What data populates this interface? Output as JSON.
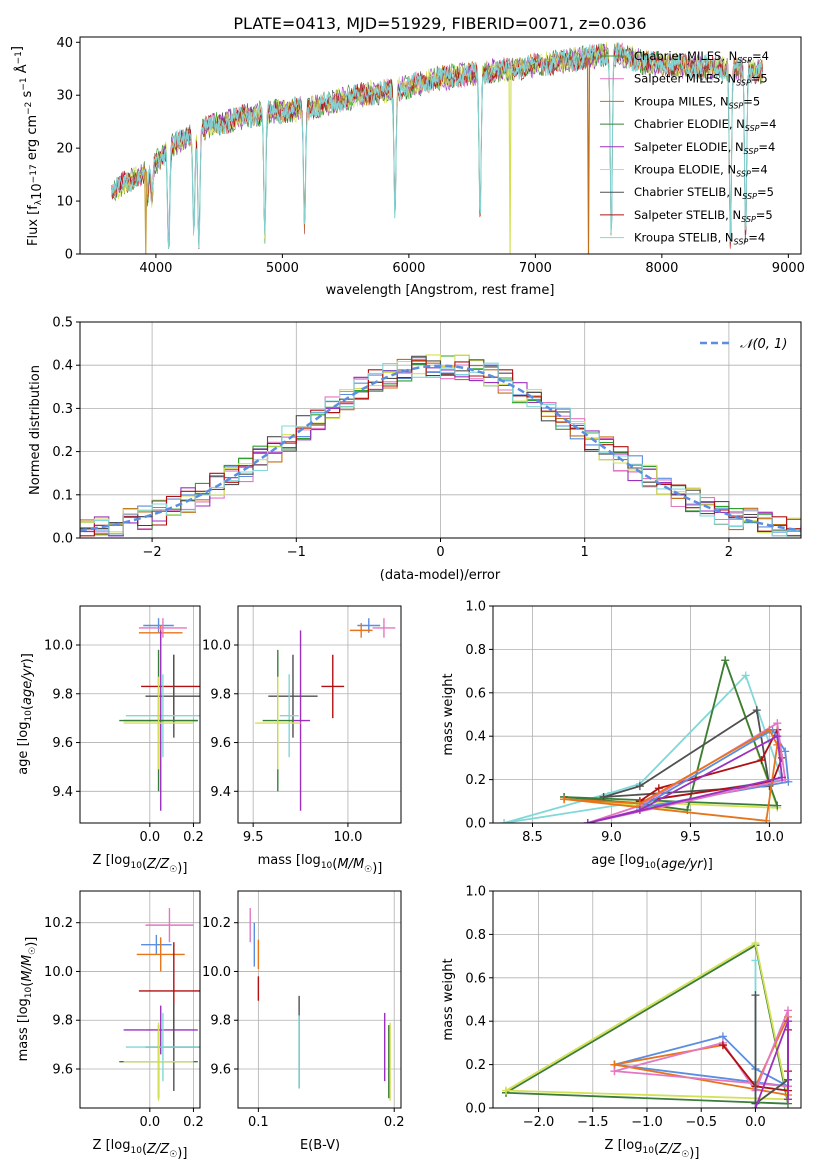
{
  "figure": {
    "title": "PLATE=0413, MJD=51929, FIBERID=0071, z=0.036"
  },
  "colors": {
    "chabrier_miles": "#2ca02c",
    "salpeter_miles": "#e377c2",
    "kroupa_miles": "#c07018",
    "chabrier_elodie": "#3a7d3a",
    "salpeter_elodie": "#9b30c0",
    "kroupa_elodie": "#d4e157",
    "chabrier_stelib": "#505050",
    "salpeter_stelib": "#b01010",
    "kroupa_stelib": "#80d8d8",
    "miles_blue": "#5b8ee0",
    "miles_orange": "#e8741a",
    "normal_curve": "#5b8ee0"
  },
  "chart_data": [
    {
      "id": "spectrum",
      "type": "line",
      "xlabel": "wavelength [Angstrom, rest frame]",
      "ylabel": "Flux [f_λ10^-17 erg cm^-2 s^-1 A^-1]",
      "xlim": [
        3400,
        9100
      ],
      "ylim": [
        0,
        41
      ],
      "xticks": [
        4000,
        5000,
        6000,
        7000,
        8000,
        9000
      ],
      "yticks": [
        0,
        10,
        20,
        30,
        40
      ],
      "legend_position": "right",
      "grid": false,
      "legend": [
        {
          "label": "Chabrier MILES, N_SSP=4",
          "color": "#2ca02c"
        },
        {
          "label": "Salpeter MILES, N_SSP=5",
          "color": "#e377c2"
        },
        {
          "label": "Kroupa MILES, N_SSP=5",
          "color": "#c07018"
        },
        {
          "label": "Chabrier ELODIE, N_SSP=4",
          "color": "#3a7d3a"
        },
        {
          "label": "Salpeter ELODIE, N_SSP=4",
          "color": "#9b30c0"
        },
        {
          "label": "Kroupa ELODIE, N_SSP=4",
          "color": "#d4e157"
        },
        {
          "label": "Chabrier STELIB, N_SSP=5",
          "color": "#505050"
        },
        {
          "label": "Salpeter STELIB, N_SSP=5",
          "color": "#b01010"
        },
        {
          "label": "Kroupa STELIB, N_SSP=4",
          "color": "#80d8d8"
        }
      ],
      "continuum": [
        [
          3650,
          12
        ],
        [
          3800,
          14
        ],
        [
          3950,
          16
        ],
        [
          4100,
          20
        ],
        [
          4400,
          24
        ],
        [
          4700,
          26
        ],
        [
          5000,
          27
        ],
        [
          5300,
          28
        ],
        [
          5600,
          30
        ],
        [
          5900,
          31
        ],
        [
          6200,
          33
        ],
        [
          6500,
          34
        ],
        [
          6800,
          35
        ],
        [
          7100,
          36
        ],
        [
          7400,
          37
        ],
        [
          7600,
          38
        ],
        [
          7900,
          36
        ],
        [
          8200,
          35.5
        ],
        [
          8500,
          35
        ],
        [
          8800,
          34.5
        ]
      ],
      "absorption_lines": [
        [
          3934,
          5
        ],
        [
          3969,
          6
        ],
        [
          4101,
          20
        ],
        [
          4300,
          18
        ],
        [
          4340,
          21
        ],
        [
          4861,
          23
        ],
        [
          5175,
          22
        ],
        [
          5890,
          23
        ],
        [
          6563,
          28
        ],
        [
          7600,
          34
        ],
        [
          8542,
          33
        ],
        [
          8662,
          32
        ]
      ],
      "dropouts": [
        [
          3920,
          "#c8a040"
        ],
        [
          6800,
          "#d4e157"
        ],
        [
          7420,
          "#c07018"
        ]
      ]
    },
    {
      "id": "residual-histogram",
      "type": "bar",
      "xlabel": "(data-model)/error",
      "ylabel": "Normed distribution",
      "xlim": [
        -2.5,
        2.5
      ],
      "ylim": [
        0,
        0.5
      ],
      "xticks": [
        -2,
        -1,
        0,
        1,
        2
      ],
      "yticks": [
        0.0,
        0.1,
        0.2,
        0.3,
        0.4,
        0.5
      ],
      "grid": true,
      "legend": [
        {
          "label": "𝒩(0, 1)",
          "style": "dashed",
          "color": "#5b8ee0"
        }
      ],
      "legend_position": "top-right",
      "bin_width": 0.1
    },
    {
      "id": "age-vs-Z",
      "type": "scatter",
      "xlabel": "Z [log10(Z/Z☉)]",
      "ylabel": "age [log10(age/yr)]",
      "xlim": [
        -0.32,
        0.23
      ],
      "ylim": [
        9.27,
        10.16
      ],
      "xticks": [
        0.0,
        0.2
      ],
      "yticks": [
        9.4,
        9.6,
        9.8,
        10.0
      ],
      "grid": true,
      "points": [
        {
          "color": "#5b8ee0",
          "x": 0.04,
          "xerr": 0.07,
          "y": 10.08,
          "yerr": 0.03
        },
        {
          "color": "#e8741a",
          "x": 0.05,
          "xerr": 0.1,
          "y": 10.05,
          "yerr": 0.03
        },
        {
          "color": "#e377c2",
          "x": 0.06,
          "xerr": 0.11,
          "y": 10.07,
          "yerr": 0.04
        },
        {
          "color": "#b01010",
          "x": 0.11,
          "xerr": 0.15,
          "y": 9.83,
          "yerr": 0.13
        },
        {
          "color": "#505050",
          "x": 0.11,
          "xerr": 0.13,
          "y": 9.79,
          "yerr": 0.17
        },
        {
          "color": "#80d8d8",
          "x": 0.06,
          "xerr": 0.17,
          "y": 9.71,
          "yerr": 0.17
        },
        {
          "color": "#9b30c0",
          "x": 0.05,
          "xerr": 0.17,
          "y": 9.69,
          "yerr": 0.37
        },
        {
          "color": "#3a7d3a",
          "x": 0.04,
          "xerr": 0.18,
          "y": 9.69,
          "yerr": 0.29
        },
        {
          "color": "#d4e157",
          "x": 0.04,
          "xerr": 0.16,
          "y": 9.68,
          "yerr": 0.19
        }
      ]
    },
    {
      "id": "age-vs-mass",
      "type": "scatter",
      "xlabel": "mass [log10(M/M☉)]",
      "ylabel": "",
      "xlim": [
        9.42,
        10.28
      ],
      "ylim": [
        9.27,
        10.16
      ],
      "xticks": [
        9.5,
        10.0
      ],
      "yticks": [
        9.4,
        9.6,
        9.8,
        10.0
      ],
      "grid": true,
      "points": [
        {
          "color": "#5b8ee0",
          "x": 10.11,
          "xerr": 0.06,
          "y": 10.08,
          "yerr": 0.03
        },
        {
          "color": "#e8741a",
          "x": 10.07,
          "xerr": 0.06,
          "y": 10.06,
          "yerr": 0.03
        },
        {
          "color": "#e377c2",
          "x": 10.19,
          "xerr": 0.06,
          "y": 10.07,
          "yerr": 0.04
        },
        {
          "color": "#b01010",
          "x": 9.92,
          "xerr": 0.06,
          "y": 9.83,
          "yerr": 0.13
        },
        {
          "color": "#505050",
          "x": 9.71,
          "xerr": 0.13,
          "y": 9.79,
          "yerr": 0.17
        },
        {
          "color": "#80d8d8",
          "x": 9.69,
          "xerr": 0.05,
          "y": 9.71,
          "yerr": 0.17
        },
        {
          "color": "#9b30c0",
          "x": 9.75,
          "xerr": 0.05,
          "y": 9.69,
          "yerr": 0.37
        },
        {
          "color": "#3a7d3a",
          "x": 9.63,
          "xerr": 0.08,
          "y": 9.69,
          "yerr": 0.29
        },
        {
          "color": "#d4e157",
          "x": 9.63,
          "xerr": 0.12,
          "y": 9.68,
          "yerr": 0.19
        }
      ]
    },
    {
      "id": "mass-weight-vs-age",
      "type": "line",
      "xlabel": "age [log10(age/yr)]",
      "ylabel": "mass weight",
      "xlim": [
        8.25,
        10.2
      ],
      "ylim": [
        0,
        1
      ],
      "xticks": [
        8.5,
        9.0,
        9.5,
        10.0
      ],
      "yticks": [
        0.0,
        0.2,
        0.4,
        0.6,
        0.8,
        1.0
      ],
      "grid": true,
      "series": [
        {
          "color": "#80d8d8",
          "points": [
            [
              8.32,
              0.0
            ],
            [
              9.0,
              0.14
            ],
            [
              9.18,
              0.18
            ],
            [
              9.85,
              0.68
            ],
            [
              10.08,
              0.2
            ],
            [
              8.32,
              0.0
            ]
          ]
        },
        {
          "color": "#d4e157",
          "points": [
            [
              8.7,
              0.11
            ],
            [
              9.18,
              0.08
            ],
            [
              9.48,
              0.06
            ],
            [
              9.72,
              0.75
            ],
            [
              10.05,
              0.07
            ],
            [
              8.7,
              0.11
            ]
          ]
        },
        {
          "color": "#3a7d3a",
          "points": [
            [
              8.7,
              0.12
            ],
            [
              9.18,
              0.09
            ],
            [
              9.48,
              0.06
            ],
            [
              9.72,
              0.75
            ],
            [
              10.05,
              0.08
            ],
            [
              8.7,
              0.12
            ]
          ]
        },
        {
          "color": "#505050",
          "points": [
            [
              8.95,
              0.12
            ],
            [
              9.18,
              0.17
            ],
            [
              9.92,
              0.52
            ],
            [
              10.0,
              0.17
            ],
            [
              8.95,
              0.12
            ]
          ]
        },
        {
          "color": "#b01010",
          "points": [
            [
              9.18,
              0.1
            ],
            [
              9.3,
              0.16
            ],
            [
              9.95,
              0.29
            ],
            [
              10.05,
              0.43
            ],
            [
              10.08,
              0.3
            ],
            [
              10.02,
              0.19
            ],
            [
              9.18,
              0.1
            ]
          ]
        },
        {
          "color": "#5b8ee0",
          "points": [
            [
              9.18,
              0.07
            ],
            [
              10.02,
              0.43
            ],
            [
              10.1,
              0.33
            ],
            [
              10.12,
              0.19
            ],
            [
              9.18,
              0.07
            ]
          ]
        },
        {
          "color": "#e377c2",
          "points": [
            [
              8.85,
              0.0
            ],
            [
              9.18,
              0.08
            ],
            [
              10.05,
              0.46
            ],
            [
              10.1,
              0.2
            ],
            [
              8.85,
              0.0
            ]
          ]
        },
        {
          "color": "#e8741a",
          "points": [
            [
              8.7,
              0.11
            ],
            [
              9.18,
              0.09
            ],
            [
              10.0,
              0.43
            ],
            [
              10.05,
              0.36
            ],
            [
              9.98,
              0.01
            ],
            [
              8.7,
              0.11
            ]
          ]
        },
        {
          "color": "#9b30c0",
          "points": [
            [
              8.85,
              0.0
            ],
            [
              9.18,
              0.06
            ],
            [
              10.05,
              0.4
            ],
            [
              10.08,
              0.21
            ],
            [
              8.85,
              0.0
            ]
          ]
        }
      ]
    },
    {
      "id": "mass-vs-Z",
      "type": "scatter",
      "xlabel": "Z [log10(Z/Z☉)]",
      "ylabel": "mass [log10(M/M☉)]",
      "xlim": [
        -0.32,
        0.23
      ],
      "ylim": [
        9.44,
        10.33
      ],
      "xticks": [
        0.0,
        0.2
      ],
      "yticks": [
        9.6,
        9.8,
        10.0,
        10.2
      ],
      "grid": true,
      "points": [
        {
          "color": "#e377c2",
          "x": 0.09,
          "xerr": 0.11,
          "y": 10.19,
          "yerr": 0.07
        },
        {
          "color": "#5b8ee0",
          "x": 0.03,
          "xerr": 0.07,
          "y": 10.11,
          "yerr": 0.04
        },
        {
          "color": "#e8741a",
          "x": 0.05,
          "xerr": 0.11,
          "y": 10.07,
          "yerr": 0.07
        },
        {
          "color": "#b01010",
          "x": 0.11,
          "xerr": 0.16,
          "y": 9.92,
          "yerr": 0.2
        },
        {
          "color": "#9b30c0",
          "x": 0.05,
          "xerr": 0.17,
          "y": 9.76,
          "yerr": 0.1
        },
        {
          "color": "#505050",
          "x": 0.11,
          "xerr": 0.13,
          "y": 9.69,
          "yerr": 0.18
        },
        {
          "color": "#80d8d8",
          "x": 0.06,
          "xerr": 0.17,
          "y": 9.69,
          "yerr": 0.14
        },
        {
          "color": "#3a7d3a",
          "x": 0.04,
          "xerr": 0.18,
          "y": 9.63,
          "yerr": 0.15
        },
        {
          "color": "#d4e157",
          "x": 0.04,
          "xerr": 0.16,
          "y": 9.63,
          "yerr": 0.16
        }
      ]
    },
    {
      "id": "mass-vs-ebv",
      "type": "scatter",
      "xlabel": "E(B-V)",
      "ylabel": "",
      "xlim": [
        0.085,
        0.205
      ],
      "ylim": [
        9.44,
        10.33
      ],
      "xticks": [
        0.1,
        0.2
      ],
      "yticks": [
        9.6,
        9.8,
        10.0,
        10.2
      ],
      "grid": true,
      "points": [
        {
          "color": "#e377c2",
          "x": 0.094,
          "xerr": 0,
          "y": 10.19,
          "yerr": 0.07
        },
        {
          "color": "#5b8ee0",
          "x": 0.097,
          "xerr": 0,
          "y": 10.11,
          "yerr": 0.09
        },
        {
          "color": "#e8741a",
          "x": 0.1,
          "xerr": 0,
          "y": 10.07,
          "yerr": 0.06
        },
        {
          "color": "#b01010",
          "x": 0.1,
          "xerr": 0,
          "y": 9.93,
          "yerr": 0.05
        },
        {
          "color": "#505050",
          "x": 0.13,
          "xerr": 0,
          "y": 9.71,
          "yerr": 0.19
        },
        {
          "color": "#80d8d8",
          "x": 0.13,
          "xerr": 0,
          "y": 9.67,
          "yerr": 0.15
        },
        {
          "color": "#9b30c0",
          "x": 0.193,
          "xerr": 0,
          "y": 9.69,
          "yerr": 0.14
        },
        {
          "color": "#3a7d3a",
          "x": 0.196,
          "xerr": 0,
          "y": 9.63,
          "yerr": 0.15
        },
        {
          "color": "#d4e157",
          "x": 0.197,
          "xerr": 0,
          "y": 9.63,
          "yerr": 0.16
        }
      ]
    },
    {
      "id": "mass-weight-vs-Z",
      "type": "line",
      "xlabel": "Z [log10(Z/Z☉)]",
      "ylabel": "mass weight",
      "xlim": [
        -2.42,
        0.42
      ],
      "ylim": [
        0,
        1
      ],
      "xticks": [
        -2.0,
        -1.5,
        -1.0,
        -0.5,
        0.0
      ],
      "yticks": [
        0.0,
        0.2,
        0.4,
        0.6,
        0.8,
        1.0
      ],
      "grid": true,
      "series": [
        {
          "color": "#3a7d3a",
          "points": [
            [
              -2.3,
              0.07
            ],
            [
              0.0,
              0.75
            ],
            [
              0.3,
              0.02
            ],
            [
              -2.3,
              0.07
            ]
          ]
        },
        {
          "color": "#d4e157",
          "points": [
            [
              -2.3,
              0.08
            ],
            [
              0.0,
              0.76
            ],
            [
              0.3,
              0.04
            ],
            [
              -2.3,
              0.08
            ]
          ]
        },
        {
          "color": "#5b8ee0",
          "points": [
            [
              -1.3,
              0.2
            ],
            [
              -0.3,
              0.33
            ],
            [
              0.0,
              0.18
            ],
            [
              0.3,
              0.1
            ],
            [
              -1.3,
              0.2
            ]
          ]
        },
        {
          "color": "#e8741a",
          "points": [
            [
              -1.3,
              0.2
            ],
            [
              -0.3,
              0.29
            ],
            [
              0.0,
              0.1
            ],
            [
              0.3,
              0.42
            ],
            [
              0.3,
              0.06
            ],
            [
              -1.3,
              0.2
            ]
          ]
        },
        {
          "color": "#e377c2",
          "points": [
            [
              -1.3,
              0.17
            ],
            [
              -0.3,
              0.3
            ],
            [
              0.0,
              0.08
            ],
            [
              0.3,
              0.45
            ],
            [
              0.3,
              0.1
            ],
            [
              -1.3,
              0.17
            ]
          ]
        },
        {
          "color": "#b01010",
          "points": [
            [
              -0.3,
              0.29
            ],
            [
              0.0,
              0.1
            ],
            [
              0.3,
              0.08
            ],
            [
              0.3,
              0.36
            ],
            [
              0.3,
              0.17
            ]
          ]
        },
        {
          "color": "#80d8d8",
          "points": [
            [
              0.0,
              0.68
            ],
            [
              0.0,
              0.02
            ],
            [
              0.3,
              0.13
            ]
          ]
        },
        {
          "color": "#505050",
          "points": [
            [
              0.0,
              0.52
            ],
            [
              0.0,
              0.02
            ],
            [
              0.3,
              0.13
            ]
          ]
        },
        {
          "color": "#9b30c0",
          "points": [
            [
              0.0,
              0.0
            ],
            [
              0.3,
              0.4
            ],
            [
              0.3,
              0.04
            ]
          ]
        }
      ]
    }
  ]
}
